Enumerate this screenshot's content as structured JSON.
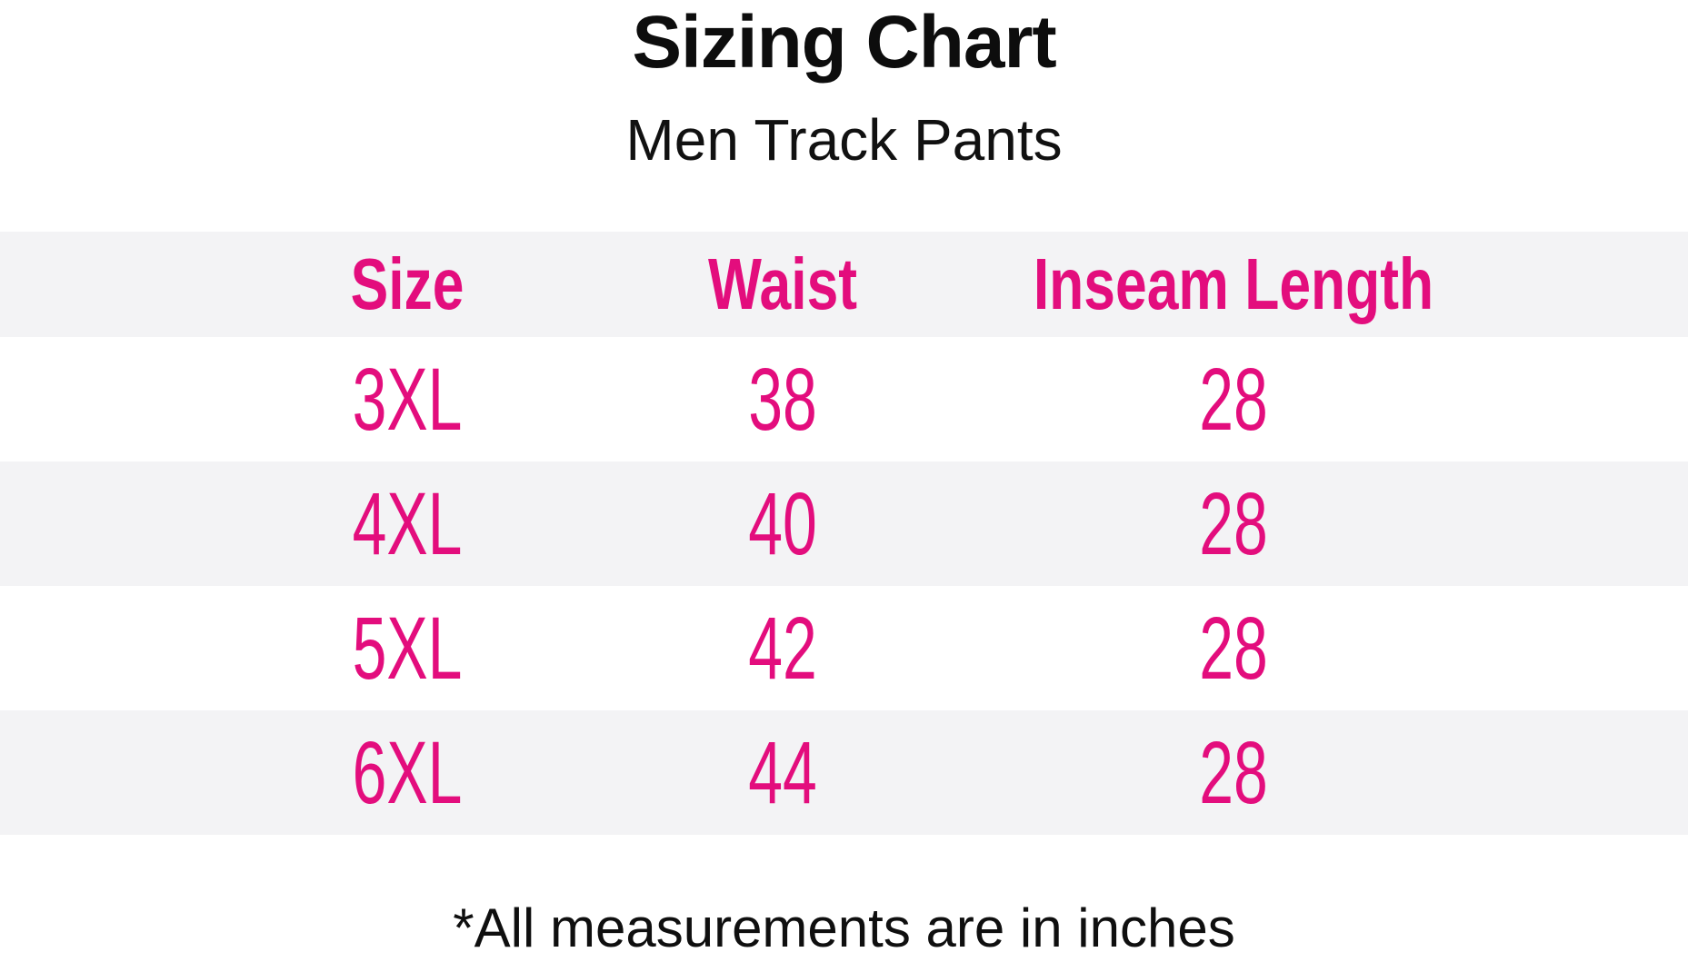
{
  "title": "Sizing Chart",
  "subtitle": "Men Track Pants",
  "footnote": "*All measurements are in inches",
  "colors": {
    "accent_pink": "#e30d7d",
    "alt_row_bg": "#f3f3f5",
    "text_black": "#0f0f0f",
    "page_bg": "#ffffff"
  },
  "table": {
    "columns": [
      "Size",
      "Waist",
      "Inseam Length"
    ],
    "rows": [
      {
        "size": "3XL",
        "waist": "38",
        "inseam": "28"
      },
      {
        "size": "4XL",
        "waist": "40",
        "inseam": "28"
      },
      {
        "size": "5XL",
        "waist": "42",
        "inseam": "28"
      },
      {
        "size": "6XL",
        "waist": "44",
        "inseam": "28"
      }
    ]
  },
  "chart_data": {
    "type": "table",
    "title": "Sizing Chart",
    "subtitle": "Men Track Pants",
    "columns": [
      "Size",
      "Waist",
      "Inseam Length"
    ],
    "rows": [
      [
        "3XL",
        38,
        28
      ],
      [
        "4XL",
        40,
        28
      ],
      [
        "5XL",
        42,
        28
      ],
      [
        "6XL",
        44,
        28
      ]
    ],
    "units": "inches",
    "note": "*All measurements are in inches",
    "layout": {
      "header_bg": "#f3f3f5",
      "zebra_striping": true,
      "text_color": "#e30d7d"
    }
  }
}
